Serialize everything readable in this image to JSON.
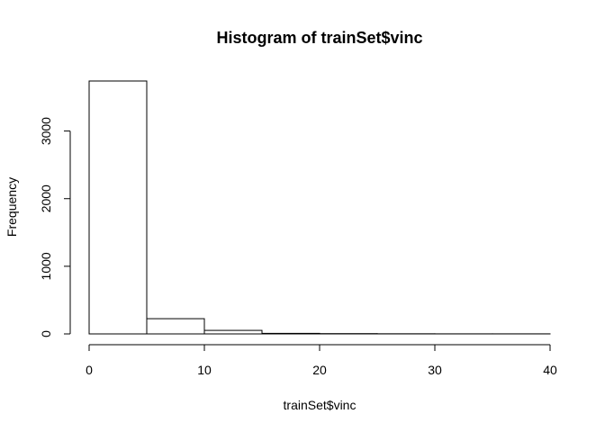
{
  "chart_data": {
    "type": "bar",
    "title": "Histogram of trainSet$vinc",
    "xlabel": "trainSet$vinc",
    "ylabel": "Frequency",
    "bins": [
      {
        "from": 0,
        "to": 5,
        "count": 3740
      },
      {
        "from": 5,
        "to": 10,
        "count": 225
      },
      {
        "from": 10,
        "to": 15,
        "count": 52
      },
      {
        "from": 15,
        "to": 20,
        "count": 8
      },
      {
        "from": 20,
        "to": 25,
        "count": 4
      },
      {
        "from": 25,
        "to": 30,
        "count": 2
      },
      {
        "from": 30,
        "to": 35,
        "count": 1
      },
      {
        "from": 35,
        "to": 40,
        "count": 1
      }
    ],
    "xlim": [
      0,
      40
    ],
    "ylim": [
      0,
      3740
    ],
    "xticks": [
      0,
      10,
      20,
      30,
      40
    ],
    "yticks": [
      0,
      1000,
      2000,
      3000
    ],
    "grid": false,
    "bar_fill": "#ffffff",
    "bar_stroke": "#000000"
  }
}
